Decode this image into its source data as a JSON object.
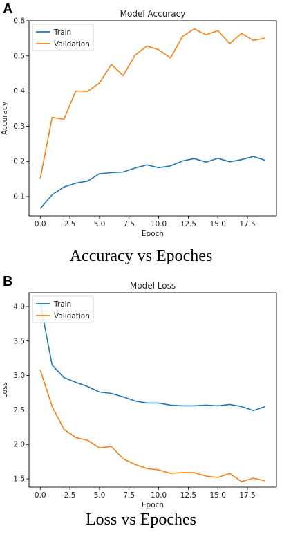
{
  "panels": [
    {
      "letter": "A",
      "caption": "Accuracy vs Epoches"
    },
    {
      "letter": "B",
      "caption": "Loss vs Epoches"
    }
  ],
  "chart_data": [
    {
      "type": "line",
      "title": "Model Accuracy",
      "xlabel": "Epoch",
      "ylabel": "Accuracy",
      "xlim": [
        -0.95,
        19.95
      ],
      "ylim": [
        0.045,
        0.6
      ],
      "xticks": [
        0.0,
        2.5,
        5.0,
        7.5,
        10.0,
        12.5,
        15.0,
        17.5
      ],
      "xtick_labels": [
        "0.0",
        "2.5",
        "5.0",
        "7.5",
        "10.0",
        "12.5",
        "15.0",
        "17.5"
      ],
      "yticks": [
        0.1,
        0.2,
        0.3,
        0.4,
        0.5,
        0.6
      ],
      "ytick_labels": [
        "0.1",
        "0.2",
        "0.3",
        "0.4",
        "0.5",
        "0.6"
      ],
      "legend": "upper-left",
      "grid": false,
      "x": [
        0,
        1,
        2,
        3,
        4,
        5,
        6,
        7,
        8,
        9,
        10,
        11,
        12,
        13,
        14,
        15,
        16,
        17,
        18,
        19
      ],
      "series": [
        {
          "name": "Train",
          "color": "#1f77b4",
          "values": [
            0.066,
            0.105,
            0.127,
            0.138,
            0.144,
            0.165,
            0.168,
            0.17,
            0.181,
            0.19,
            0.182,
            0.187,
            0.201,
            0.208,
            0.198,
            0.209,
            0.199,
            0.205,
            0.214,
            0.203
          ]
        },
        {
          "name": "Validation",
          "color": "#ff7f0e",
          "values": [
            0.151,
            0.325,
            0.32,
            0.4,
            0.399,
            0.423,
            0.476,
            0.444,
            0.502,
            0.528,
            0.518,
            0.494,
            0.555,
            0.577,
            0.56,
            0.572,
            0.535,
            0.564,
            0.544,
            0.551
          ]
        }
      ]
    },
    {
      "type": "line",
      "title": "Model Loss",
      "xlabel": "Epoch",
      "ylabel": "Loss",
      "xlim": [
        -0.95,
        19.95
      ],
      "ylim": [
        1.38,
        4.2
      ],
      "xticks": [
        0.0,
        2.5,
        5.0,
        7.5,
        10.0,
        12.5,
        15.0,
        17.5
      ],
      "xtick_labels": [
        "0.0",
        "2.5",
        "5.0",
        "7.5",
        "10.0",
        "12.5",
        "15.0",
        "17.5"
      ],
      "yticks": [
        1.5,
        2.0,
        2.5,
        3.0,
        3.5,
        4.0
      ],
      "ytick_labels": [
        "1.5",
        "2.0",
        "2.5",
        "3.0",
        "3.5",
        "4.0"
      ],
      "legend": "upper-left",
      "grid": false,
      "x": [
        0,
        1,
        2,
        3,
        4,
        5,
        6,
        7,
        8,
        9,
        10,
        11,
        12,
        13,
        14,
        15,
        16,
        17,
        18,
        19
      ],
      "series": [
        {
          "name": "Train",
          "color": "#1f77b4",
          "values": [
            4.05,
            3.15,
            2.97,
            2.9,
            2.84,
            2.76,
            2.74,
            2.69,
            2.63,
            2.6,
            2.6,
            2.57,
            2.56,
            2.56,
            2.57,
            2.56,
            2.58,
            2.55,
            2.49,
            2.55
          ]
        },
        {
          "name": "Validation",
          "color": "#ff7f0e",
          "values": [
            3.08,
            2.55,
            2.22,
            2.1,
            2.06,
            1.95,
            1.97,
            1.79,
            1.71,
            1.65,
            1.63,
            1.58,
            1.59,
            1.59,
            1.54,
            1.52,
            1.58,
            1.46,
            1.51,
            1.47
          ]
        }
      ]
    }
  ]
}
